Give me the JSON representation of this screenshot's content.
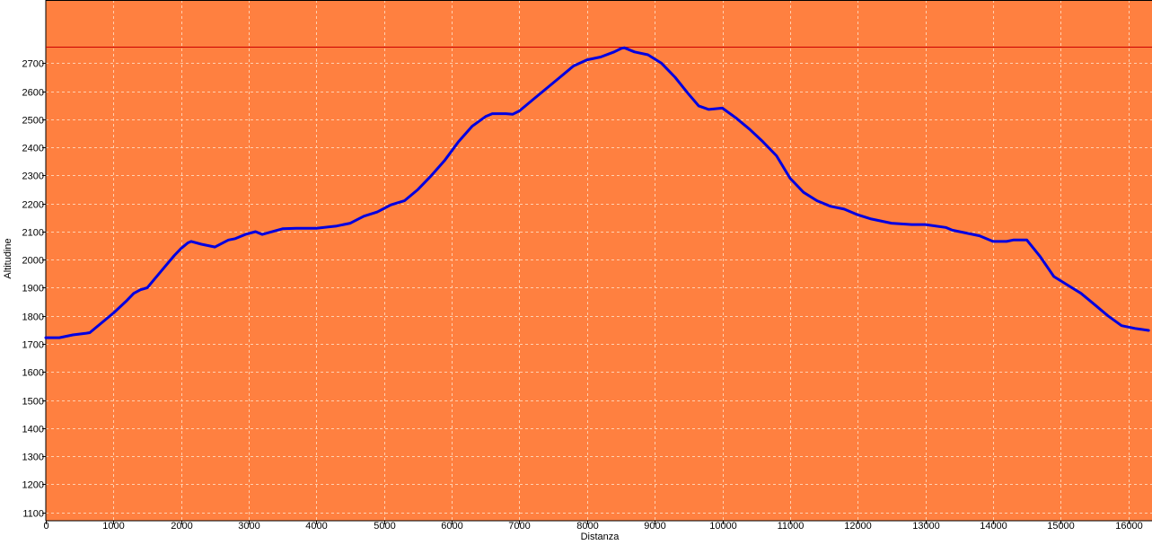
{
  "chart_data": {
    "type": "line",
    "title": "",
    "xlabel": "Distanza",
    "ylabel": "Altitudine",
    "xlim": [
      0,
      16350
    ],
    "ylim": [
      1070,
      2925
    ],
    "x_ticks": [
      0,
      1000,
      2000,
      3000,
      4000,
      5000,
      6000,
      7000,
      8000,
      9000,
      10000,
      11000,
      12000,
      13000,
      14000,
      15000,
      16000
    ],
    "y_ticks": [
      1100,
      1200,
      1300,
      1400,
      1500,
      1600,
      1700,
      1800,
      1900,
      2000,
      2100,
      2200,
      2300,
      2400,
      2500,
      2600,
      2700
    ],
    "grid": true,
    "legend": "none",
    "colors": {
      "plot_background": "#FF8040",
      "line": "#0000E0",
      "max_line": "#CC0000",
      "grid": "#FFD0B0"
    },
    "max_reference_line": 2758,
    "series": [
      {
        "x": [
          0,
          200,
          400,
          600,
          650,
          800,
          1000,
          1200,
          1300,
          1400,
          1500,
          1700,
          1900,
          2000,
          2100,
          2150,
          2300,
          2500,
          2700,
          2800,
          2950,
          3100,
          3200,
          3500,
          3700,
          4000,
          4300,
          4500,
          4700,
          4900,
          5100,
          5300,
          5500,
          5700,
          5900,
          6100,
          6300,
          6500,
          6600,
          6800,
          6900,
          7000,
          7200,
          7400,
          7600,
          7800,
          8000,
          8200,
          8400,
          8500,
          8550,
          8700,
          8900,
          9100,
          9300,
          9500,
          9650,
          9800,
          10000,
          10200,
          10400,
          10600,
          10800,
          11000,
          11200,
          11400,
          11600,
          11800,
          12000,
          12200,
          12500,
          12800,
          13000,
          13300,
          13400,
          13600,
          13800,
          14000,
          14200,
          14300,
          14500,
          14700,
          14900,
          15100,
          15300,
          15500,
          15700,
          15900,
          16100,
          16300
        ],
        "values": [
          1722,
          1722,
          1732,
          1738,
          1740,
          1770,
          1810,
          1855,
          1880,
          1893,
          1900,
          1958,
          2015,
          2040,
          2060,
          2065,
          2055,
          2045,
          2070,
          2075,
          2090,
          2100,
          2090,
          2110,
          2112,
          2112,
          2120,
          2130,
          2155,
          2170,
          2195,
          2210,
          2250,
          2300,
          2355,
          2420,
          2475,
          2510,
          2520,
          2520,
          2518,
          2530,
          2570,
          2610,
          2650,
          2690,
          2712,
          2722,
          2740,
          2752,
          2755,
          2740,
          2730,
          2700,
          2650,
          2590,
          2548,
          2535,
          2540,
          2505,
          2465,
          2420,
          2370,
          2290,
          2240,
          2210,
          2190,
          2180,
          2160,
          2145,
          2130,
          2125,
          2125,
          2115,
          2105,
          2095,
          2085,
          2065,
          2065,
          2070,
          2070,
          2010,
          1940,
          1910,
          1880,
          1840,
          1800,
          1765,
          1755,
          1748
        ]
      }
    ]
  }
}
